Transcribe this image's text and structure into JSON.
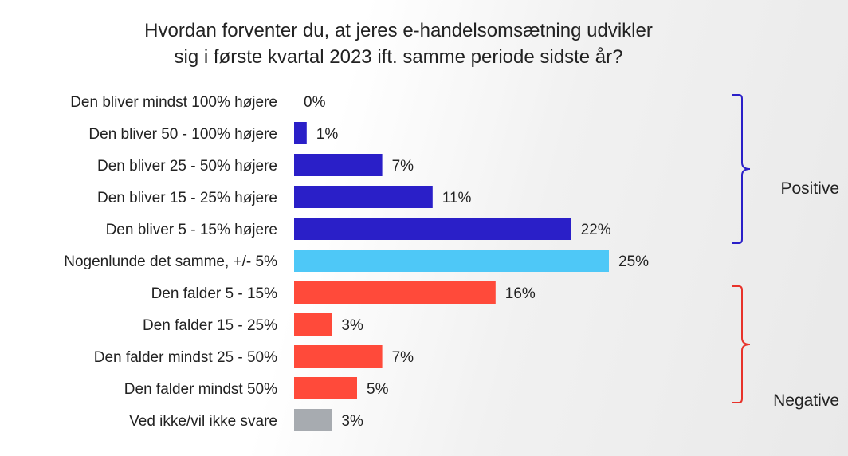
{
  "title_line1": "Hvordan forventer du, at jeres e-handelsomsætning udvikler",
  "title_line2": "sig i første kvartal 2023 ift. samme periode sidste år?",
  "chart_data": {
    "type": "bar",
    "orientation": "horizontal",
    "categories": [
      "Den bliver mindst 100% højere",
      "Den bliver 50 - 100% højere",
      "Den bliver 25 - 50% højere",
      "Den bliver 15 - 25% højere",
      "Den bliver 5 - 15% højere",
      "Nogenlunde det samme, +/- 5%",
      "Den falder 5 - 15%",
      "Den falder 15 - 25%",
      "Den falder mindst 25 - 50%",
      "Den falder mindst 50%",
      "Ved ikke/vil ikke svare"
    ],
    "values": [
      0,
      1,
      7,
      11,
      22,
      25,
      16,
      3,
      7,
      5,
      3
    ],
    "labels": [
      "0%",
      "1%",
      "7%",
      "11%",
      "22%",
      "25%",
      "16%",
      "3%",
      "7%",
      "5%",
      "3%"
    ],
    "bar_colors": [
      "#2a1fc8",
      "#2a1fc8",
      "#2a1fc8",
      "#2a1fc8",
      "#2a1fc8",
      "#4ec8f7",
      "#ff4a3a",
      "#ff4a3a",
      "#ff4a3a",
      "#ff4a3a",
      "#a7abb0"
    ],
    "groups": [
      {
        "label": "Positive",
        "first": 0,
        "last": 4,
        "color": "#2a1fc8"
      },
      {
        "label": "Negative",
        "first": 6,
        "last": 9,
        "color": "#e8322a"
      }
    ],
    "xlim": [
      0,
      25
    ]
  }
}
